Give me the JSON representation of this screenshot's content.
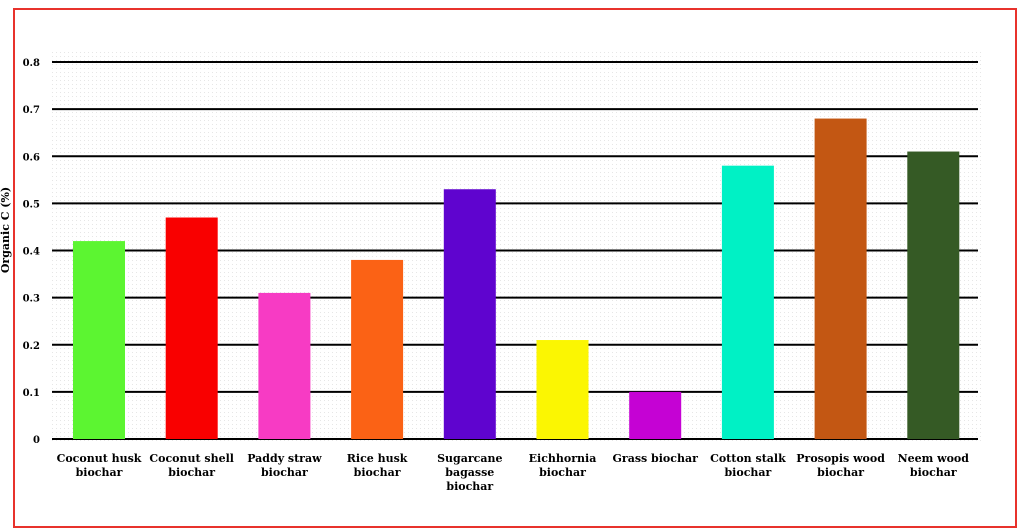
{
  "chart_data": {
    "type": "bar",
    "title": "",
    "xlabel": "",
    "ylabel": "Organic C (%)",
    "ylim": [
      0,
      0.8
    ],
    "yticks": [
      "0",
      "0.1",
      "0.2",
      "0.3",
      "0.4",
      "0.5",
      "0.6",
      "0.7",
      "0.8"
    ],
    "grid": "horizontal",
    "categories": [
      [
        "Coconut husk",
        "biochar"
      ],
      [
        "Coconut shell",
        "biochar"
      ],
      [
        "Paddy straw",
        "biochar"
      ],
      [
        "Rice husk",
        "biochar"
      ],
      [
        "Sugarcane",
        "bagasse",
        "biochar"
      ],
      [
        "Eichhornia",
        "biochar"
      ],
      [
        "Grass biochar"
      ],
      [
        "Cotton stalk",
        "biochar"
      ],
      [
        "Prosopis wood",
        "biochar"
      ],
      [
        "Neem wood",
        "biochar"
      ]
    ],
    "values": [
      0.42,
      0.47,
      0.31,
      0.38,
      0.53,
      0.21,
      0.1,
      0.58,
      0.68,
      0.61
    ],
    "colors": [
      "#5cf531",
      "#f90000",
      "#f73bc4",
      "#fb6215",
      "#5f04cf",
      "#fbf602",
      "#c502d4",
      "#00f1c5",
      "#c35713",
      "#355a25"
    ]
  }
}
